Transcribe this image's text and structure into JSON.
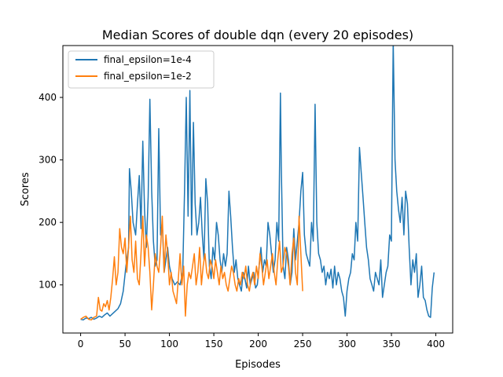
{
  "chart_data": {
    "type": "line",
    "title": "Median Scores of double dqn (every 20 episodes)",
    "xlabel": "Episodes",
    "ylabel": "Scores",
    "xlim": [
      -20,
      419
    ],
    "ylim": [
      23,
      483
    ],
    "xticks": [
      0,
      50,
      100,
      150,
      200,
      250,
      300,
      350,
      400
    ],
    "yticks": [
      100,
      200,
      300,
      400
    ],
    "grid": false,
    "legend_position": "top-left",
    "series": [
      {
        "name": "final_epsilon=1e-4",
        "color": "#1f77b4",
        "x": [
          0,
          3,
          6,
          9,
          12,
          15,
          18,
          21,
          24,
          27,
          30,
          33,
          36,
          39,
          42,
          45,
          48,
          51,
          54,
          55,
          57,
          59,
          62,
          64,
          66,
          68,
          70,
          72,
          74,
          76,
          78,
          80,
          82,
          84,
          86,
          88,
          90,
          92,
          94,
          96,
          98,
          100,
          103,
          106,
          109,
          112,
          115,
          117,
          119,
          121,
          123,
          125,
          127,
          129,
          131,
          133,
          135,
          137,
          139,
          141,
          143,
          145,
          147,
          149,
          151,
          153,
          155,
          157,
          159,
          161,
          163,
          165,
          167,
          169,
          171,
          173,
          175,
          177,
          179,
          181,
          183,
          185,
          187,
          189,
          191,
          193,
          195,
          197,
          199,
          201,
          203,
          205,
          207,
          209,
          211,
          213,
          215,
          217,
          219,
          221,
          223,
          225,
          226,
          228,
          230,
          232,
          234,
          236,
          238,
          240,
          242,
          244,
          246,
          248,
          250,
          252,
          254,
          256,
          258,
          260,
          262,
          264,
          266,
          268,
          270,
          272,
          274,
          276,
          278,
          280,
          282,
          284,
          286,
          288,
          290,
          292,
          294,
          296,
          298,
          300,
          302,
          304,
          306,
          308,
          310,
          312,
          314,
          316,
          318,
          320,
          322,
          324,
          326,
          328,
          330,
          332,
          334,
          336,
          338,
          340,
          342,
          344,
          346,
          348,
          350,
          352,
          354,
          356,
          358,
          360,
          362,
          364,
          366,
          368,
          370,
          372,
          374,
          376,
          378,
          380,
          382,
          384,
          386,
          388,
          390,
          392,
          394,
          396,
          398
        ],
        "y": [
          45,
          44,
          47,
          46,
          48,
          45,
          47,
          50,
          48,
          52,
          55,
          50,
          54,
          58,
          62,
          70,
          90,
          130,
          160,
          286,
          250,
          200,
          180,
          230,
          275,
          190,
          330,
          220,
          160,
          240,
          397,
          250,
          170,
          130,
          140,
          350,
          180,
          200,
          120,
          140,
          160,
          130,
          110,
          100,
          105,
          100,
          120,
          250,
          400,
          210,
          411,
          180,
          360,
          230,
          180,
          200,
          240,
          180,
          140,
          270,
          230,
          130,
          110,
          160,
          140,
          200,
          180,
          140,
          120,
          150,
          130,
          150,
          250,
          210,
          160,
          120,
          140,
          110,
          100,
          90,
          120,
          110,
          95,
          130,
          100,
          110,
          120,
          95,
          100,
          130,
          160,
          120,
          140,
          130,
          200,
          180,
          150,
          120,
          140,
          200,
          170,
          407,
          290,
          130,
          110,
          160,
          140,
          100,
          120,
          190,
          140,
          170,
          200,
          250,
          280,
          180,
          150,
          140,
          130,
          200,
          170,
          389,
          200,
          150,
          140,
          120,
          130,
          100,
          120,
          110,
          125,
          95,
          130,
          100,
          120,
          110,
          90,
          80,
          50,
          90,
          110,
          120,
          150,
          140,
          200,
          170,
          320,
          280,
          240,
          200,
          160,
          140,
          110,
          100,
          90,
          120,
          110,
          100,
          140,
          80,
          100,
          120,
          130,
          180,
          170,
          490,
          300,
          250,
          220,
          200,
          240,
          180,
          250,
          230,
          160,
          100,
          140,
          120,
          150,
          80,
          100,
          130,
          80,
          75,
          60,
          50,
          48,
          95,
          120
        ]
      },
      {
        "name": "final_epsilon=1e-2",
        "color": "#ff7f0e",
        "x": [
          0,
          3,
          6,
          9,
          12,
          15,
          18,
          20,
          22,
          24,
          26,
          28,
          30,
          32,
          34,
          36,
          38,
          40,
          42,
          44,
          46,
          48,
          50,
          52,
          54,
          56,
          58,
          60,
          62,
          64,
          66,
          68,
          70,
          72,
          74,
          76,
          78,
          80,
          82,
          84,
          86,
          88,
          90,
          92,
          94,
          96,
          98,
          100,
          102,
          104,
          106,
          108,
          110,
          112,
          114,
          116,
          118,
          120,
          122,
          124,
          126,
          128,
          130,
          132,
          134,
          136,
          138,
          140,
          142,
          144,
          146,
          148,
          150,
          152,
          154,
          156,
          158,
          160,
          162,
          164,
          166,
          168,
          170,
          172,
          174,
          176,
          178,
          180,
          182,
          184,
          186,
          188,
          190,
          192,
          194,
          196,
          198,
          200,
          202,
          204,
          206,
          208,
          210,
          212,
          214,
          216,
          218,
          220,
          222,
          224,
          226,
          228,
          230,
          232,
          234,
          236,
          238,
          240,
          242,
          244,
          246,
          248,
          250
        ],
        "y": [
          45,
          48,
          50,
          45,
          44,
          48,
          50,
          80,
          60,
          58,
          70,
          65,
          75,
          60,
          80,
          110,
          145,
          100,
          120,
          190,
          160,
          150,
          175,
          120,
          160,
          210,
          140,
          120,
          170,
          110,
          100,
          150,
          210,
          130,
          180,
          160,
          120,
          60,
          100,
          150,
          130,
          120,
          160,
          210,
          120,
          180,
          150,
          100,
          120,
          90,
          80,
          70,
          110,
          150,
          100,
          130,
          50,
          100,
          120,
          110,
          130,
          150,
          100,
          120,
          160,
          100,
          130,
          150,
          120,
          110,
          140,
          130,
          110,
          140,
          120,
          100,
          130,
          110,
          120,
          100,
          90,
          110,
          130,
          120,
          100,
          90,
          110,
          100,
          120,
          110,
          130,
          100,
          90,
          110,
          120,
          100,
          130,
          110,
          150,
          130,
          100,
          120,
          140,
          110,
          130,
          150,
          120,
          100,
          140,
          170,
          120,
          130,
          160,
          150,
          130,
          100,
          150,
          175,
          120,
          100,
          210,
          150,
          90
        ]
      }
    ]
  }
}
